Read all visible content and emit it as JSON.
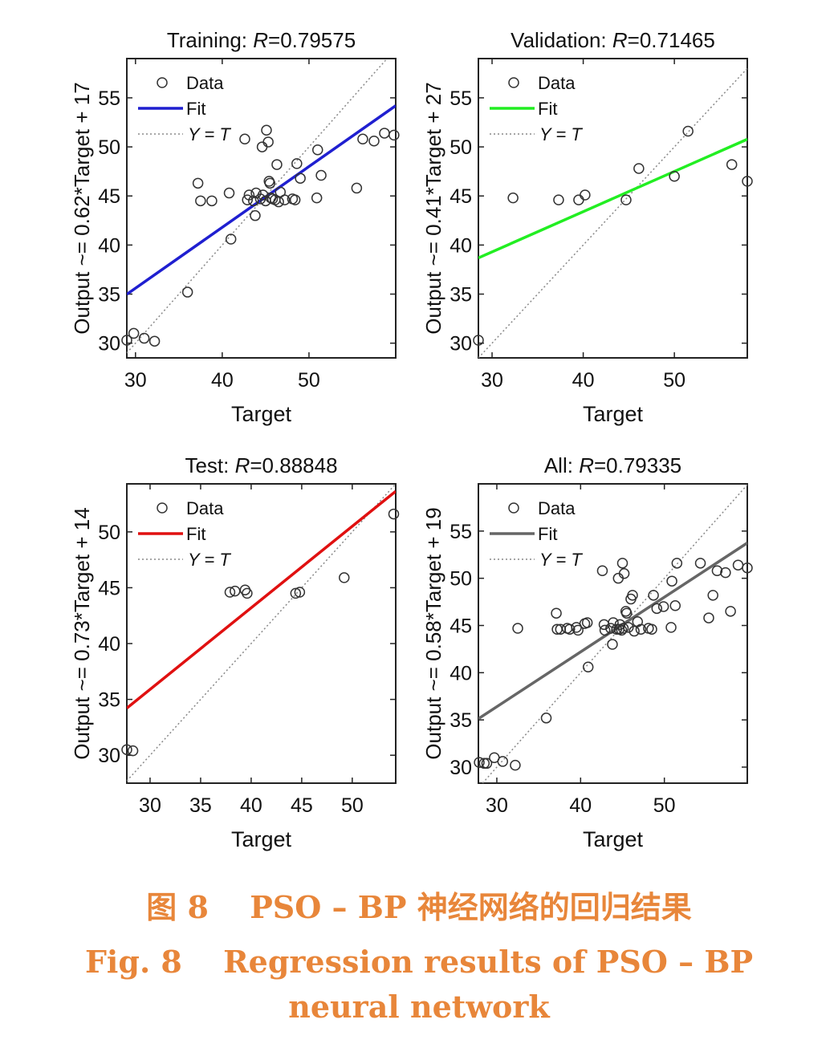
{
  "legend": {
    "data_label": "Data",
    "fit_label": "Fit",
    "identity_label": "Y = T"
  },
  "caption": {
    "zh": "图 8　 PSO – BP 神经网络的回归结果",
    "en_line1": "Fig. 8　 Regression results of PSO – BP",
    "en_line2": "neural network",
    "color": "#e8863a"
  },
  "chart_data": [
    {
      "type": "scatter",
      "title_prefix": "Training: ",
      "title_r": "R",
      "title_value": "=0.79575",
      "xlabel": "Target",
      "ylabel": "Output ~= 0.62*Target + 17",
      "xlim": [
        29,
        60
      ],
      "ylim": [
        28.5,
        59
      ],
      "xticks": [
        30,
        40,
        50
      ],
      "yticks": [
        30,
        35,
        40,
        45,
        50,
        55
      ],
      "fit": {
        "slope": 0.62,
        "intercept": 17.0,
        "color": "#1f1fd0"
      },
      "legend_position": "top-left",
      "grid": false,
      "points": [
        [
          29,
          30.3
        ],
        [
          29.8,
          31
        ],
        [
          31,
          30.5
        ],
        [
          32.2,
          30.2
        ],
        [
          36,
          35.2
        ],
        [
          37.2,
          46.3
        ],
        [
          37.5,
          44.5
        ],
        [
          38.8,
          44.5
        ],
        [
          40.8,
          45.3
        ],
        [
          41,
          40.6
        ],
        [
          42.6,
          50.8
        ],
        [
          42.9,
          44.6
        ],
        [
          43.1,
          45.1
        ],
        [
          43.6,
          44.5
        ],
        [
          43.8,
          43
        ],
        [
          43.9,
          45.3
        ],
        [
          44.4,
          44.7
        ],
        [
          44.6,
          50
        ],
        [
          44.7,
          45.1
        ],
        [
          45,
          44.5
        ],
        [
          45.1,
          51.7
        ],
        [
          45.3,
          50.5
        ],
        [
          45.4,
          46.5
        ],
        [
          45.5,
          46.3
        ],
        [
          45.6,
          44.8
        ],
        [
          45.8,
          44.7
        ],
        [
          46.1,
          44.6
        ],
        [
          46.3,
          48.2
        ],
        [
          46.5,
          44.4
        ],
        [
          46.7,
          45.4
        ],
        [
          47.2,
          44.6
        ],
        [
          48.1,
          44.7
        ],
        [
          48.4,
          44.6
        ],
        [
          48.6,
          48.3
        ],
        [
          49,
          46.8
        ],
        [
          50.9,
          44.8
        ],
        [
          51,
          49.7
        ],
        [
          51.4,
          47.1
        ],
        [
          55.5,
          45.8
        ],
        [
          56.2,
          50.8
        ],
        [
          57.5,
          50.6
        ],
        [
          58.7,
          51.4
        ],
        [
          59.8,
          51.2
        ]
      ]
    },
    {
      "type": "scatter",
      "title_prefix": "Validation: ",
      "title_r": "R",
      "title_value": "=0.71465",
      "xlabel": "Target",
      "ylabel": "Output ~= 0.41*Target + 27",
      "xlim": [
        28.5,
        58
      ],
      "ylim": [
        28.5,
        59
      ],
      "xticks": [
        30,
        40,
        50
      ],
      "yticks": [
        30,
        35,
        40,
        45,
        50,
        55
      ],
      "fit": {
        "slope": 0.41,
        "intercept": 27.0,
        "color": "#22ee22"
      },
      "legend_position": "top-left",
      "grid": false,
      "points": [
        [
          28.5,
          30.3
        ],
        [
          32.3,
          44.8
        ],
        [
          37.3,
          44.6
        ],
        [
          39.5,
          44.6
        ],
        [
          40.2,
          45.1
        ],
        [
          44.7,
          44.6
        ],
        [
          46.1,
          47.8
        ],
        [
          50,
          47
        ],
        [
          51.5,
          51.6
        ],
        [
          56.3,
          48.2
        ],
        [
          58,
          46.5
        ]
      ]
    },
    {
      "type": "scatter",
      "title_prefix": "Test: ",
      "title_r": "R",
      "title_value": "=0.88848",
      "xlabel": "Target",
      "ylabel": "Output ~= 0.73*Target + 14",
      "xlim": [
        27.7,
        54.3
      ],
      "ylim": [
        27.5,
        54.3
      ],
      "xticks": [
        30,
        35,
        40,
        45,
        50
      ],
      "yticks": [
        30,
        35,
        40,
        45,
        50
      ],
      "fit": {
        "slope": 0.73,
        "intercept": 14.0,
        "color": "#e01010"
      },
      "legend_position": "top-left",
      "grid": false,
      "points": [
        [
          27.7,
          30.5
        ],
        [
          28.3,
          30.4
        ],
        [
          37.9,
          44.6
        ],
        [
          38.4,
          44.7
        ],
        [
          39.4,
          44.8
        ],
        [
          39.6,
          44.5
        ],
        [
          44.4,
          44.5
        ],
        [
          44.8,
          44.6
        ],
        [
          49.2,
          45.9
        ],
        [
          54.1,
          51.6
        ]
      ]
    },
    {
      "type": "scatter",
      "title_prefix": "All: ",
      "title_r": "R",
      "title_value": "=0.79335",
      "xlabel": "Target",
      "ylabel": "Output ~= 0.58*Target + 19",
      "xlim": [
        27.8,
        59.9
      ],
      "ylim": [
        28.3,
        60
      ],
      "xticks": [
        30,
        40,
        50
      ],
      "yticks": [
        30,
        35,
        40,
        45,
        50,
        55
      ],
      "fit": {
        "slope": 0.58,
        "intercept": 19.0,
        "color": "#666666"
      },
      "legend_position": "top-left",
      "grid": false,
      "points": [
        [
          27.9,
          30.5
        ],
        [
          28.5,
          30.4
        ],
        [
          28.8,
          30.4
        ],
        [
          29.7,
          31
        ],
        [
          30.7,
          30.6
        ],
        [
          32.2,
          30.2
        ],
        [
          32.5,
          44.7
        ],
        [
          35.9,
          35.2
        ],
        [
          37.1,
          46.3
        ],
        [
          37.2,
          44.6
        ],
        [
          37.6,
          44.6
        ],
        [
          38.4,
          44.7
        ],
        [
          38.7,
          44.6
        ],
        [
          39.5,
          44.8
        ],
        [
          39.7,
          44.5
        ],
        [
          40.5,
          45.2
        ],
        [
          40.8,
          45.3
        ],
        [
          40.9,
          40.6
        ],
        [
          42.6,
          50.8
        ],
        [
          42.8,
          45.1
        ],
        [
          42.9,
          44.5
        ],
        [
          43.6,
          44.7
        ],
        [
          43.8,
          43
        ],
        [
          43.9,
          45.3
        ],
        [
          44.3,
          44.6
        ],
        [
          44.5,
          50
        ],
        [
          44.6,
          44.6
        ],
        [
          44.7,
          45.1
        ],
        [
          44.9,
          44.5
        ],
        [
          45,
          51.6
        ],
        [
          45.1,
          44.7
        ],
        [
          45.2,
          50.5
        ],
        [
          45.4,
          46.5
        ],
        [
          45.5,
          46.3
        ],
        [
          45.7,
          44.8
        ],
        [
          46,
          47.8
        ],
        [
          46.2,
          48.2
        ],
        [
          46.4,
          44.4
        ],
        [
          46.8,
          45.4
        ],
        [
          47.2,
          44.6
        ],
        [
          48.1,
          44.7
        ],
        [
          48.5,
          44.6
        ],
        [
          48.7,
          48.2
        ],
        [
          49.1,
          46.8
        ],
        [
          49.9,
          47
        ],
        [
          50.8,
          44.8
        ],
        [
          50.9,
          49.7
        ],
        [
          51.3,
          47.1
        ],
        [
          51.5,
          51.6
        ],
        [
          54.3,
          51.6
        ],
        [
          55.3,
          45.8
        ],
        [
          55.8,
          48.2
        ],
        [
          56.3,
          50.8
        ],
        [
          57.3,
          50.6
        ],
        [
          57.9,
          46.5
        ],
        [
          58.8,
          51.4
        ],
        [
          59.9,
          51.1
        ]
      ]
    }
  ]
}
